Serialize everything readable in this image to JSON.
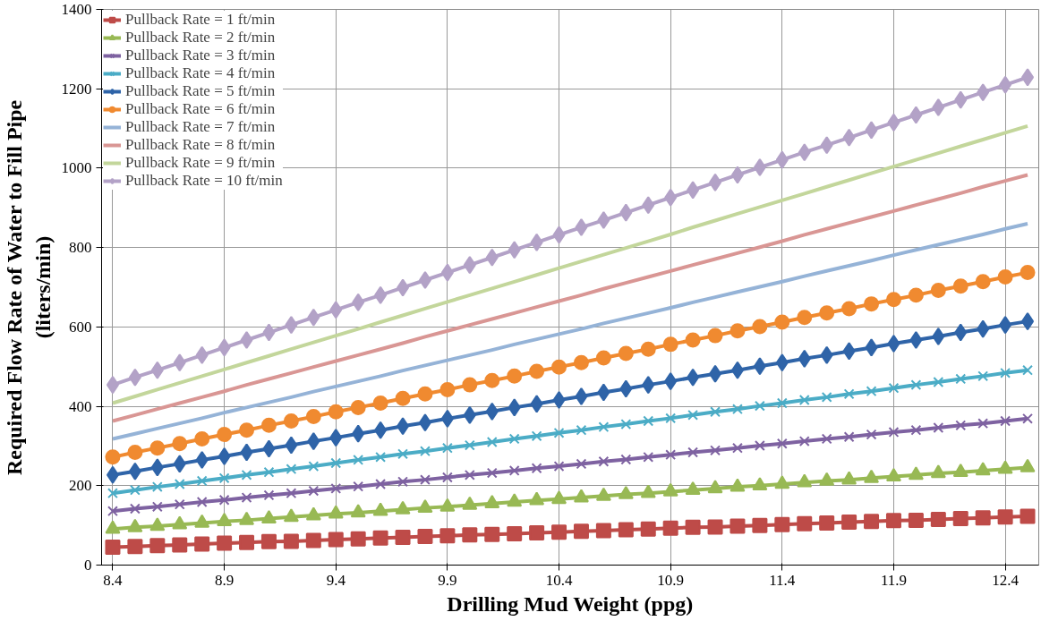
{
  "chart_data": {
    "type": "line",
    "xlabel": "Drilling Mud Weight (ppg)",
    "ylabel": "Required Flow Rate of Water to Fill Pipe\n(liters/min)",
    "x": [
      8.4,
      8.5,
      8.6,
      8.7,
      8.8,
      8.9,
      9.0,
      9.1,
      9.2,
      9.3,
      9.4,
      9.5,
      9.6,
      9.7,
      9.8,
      9.9,
      10.0,
      10.1,
      10.2,
      10.3,
      10.4,
      10.5,
      10.6,
      10.7,
      10.8,
      10.9,
      11.0,
      11.1,
      11.2,
      11.3,
      11.4,
      11.5,
      11.6,
      11.7,
      11.8,
      11.9,
      12.0,
      12.1,
      12.2,
      12.3,
      12.4,
      12.5
    ],
    "xlim": [
      8.35,
      12.55
    ],
    "xticks": [
      8.4,
      8.9,
      9.4,
      9.9,
      10.4,
      10.9,
      11.4,
      11.9,
      12.4
    ],
    "ylim": [
      0,
      1400
    ],
    "yticks": [
      0,
      200,
      400,
      600,
      800,
      1000,
      1200,
      1400
    ],
    "grid": true,
    "legend": "top left",
    "series": [
      {
        "name": "Pullback Rate = 1 ft/min",
        "color": "#be4b48",
        "marker": "square",
        "values": [
          45,
          47,
          49,
          51,
          53,
          55,
          57,
          59,
          60,
          62,
          64,
          66,
          68,
          70,
          72,
          74,
          76,
          77,
          79,
          81,
          83,
          85,
          87,
          89,
          91,
          93,
          95,
          96,
          98,
          100,
          102,
          104,
          106,
          108,
          110,
          112,
          113,
          115,
          117,
          119,
          121,
          123
        ]
      },
      {
        "name": "Pullback Rate = 2 ft/min",
        "color": "#98b954",
        "marker": "triangle",
        "values": [
          91,
          95,
          98,
          102,
          106,
          110,
          113,
          117,
          121,
          125,
          129,
          132,
          136,
          140,
          144,
          147,
          151,
          155,
          159,
          163,
          166,
          170,
          174,
          178,
          181,
          185,
          189,
          193,
          197,
          200,
          204,
          208,
          212,
          215,
          219,
          223,
          227,
          231,
          234,
          238,
          242,
          246
        ]
      },
      {
        "name": "Pullback Rate = 3 ft/min",
        "color": "#7e62a1",
        "marker": "cross",
        "values": [
          136,
          142,
          147,
          153,
          159,
          164,
          170,
          176,
          181,
          187,
          193,
          198,
          204,
          210,
          215,
          221,
          227,
          232,
          238,
          244,
          249,
          255,
          261,
          266,
          272,
          278,
          284,
          289,
          295,
          301,
          306,
          312,
          318,
          323,
          329,
          335,
          340,
          346,
          352,
          357,
          363,
          369
        ]
      },
      {
        "name": "Pullback Rate = 4 ft/min",
        "color": "#4bacc6",
        "marker": "cross",
        "values": [
          181,
          189,
          197,
          204,
          212,
          219,
          227,
          234,
          242,
          249,
          257,
          265,
          272,
          280,
          287,
          295,
          302,
          310,
          318,
          325,
          333,
          340,
          348,
          355,
          363,
          370,
          378,
          386,
          393,
          401,
          408,
          416,
          423,
          431,
          438,
          446,
          454,
          461,
          469,
          476,
          484,
          491
        ]
      },
      {
        "name": "Pullback Rate = 5 ft/min",
        "color": "#2f64a8",
        "marker": "diamond",
        "values": [
          227,
          236,
          246,
          255,
          265,
          274,
          284,
          293,
          302,
          312,
          321,
          331,
          340,
          350,
          359,
          369,
          378,
          387,
          397,
          406,
          416,
          425,
          435,
          444,
          454,
          463,
          473,
          482,
          491,
          501,
          510,
          520,
          529,
          539,
          548,
          558,
          567,
          576,
          586,
          595,
          605,
          614
        ]
      },
      {
        "name": "Pullback Rate = 6 ft/min",
        "color": "#f08a30",
        "marker": "circle",
        "values": [
          272,
          284,
          295,
          306,
          318,
          329,
          340,
          352,
          363,
          374,
          386,
          397,
          408,
          420,
          431,
          442,
          454,
          465,
          476,
          488,
          499,
          510,
          522,
          533,
          544,
          556,
          567,
          578,
          590,
          601,
          612,
          624,
          635,
          646,
          658,
          669,
          680,
          692,
          703,
          714,
          726,
          737
        ]
      },
      {
        "name": "Pullback Rate = 7 ft/min",
        "color": "#95b3d7",
        "marker": "none",
        "values": [
          318,
          331,
          344,
          357,
          370,
          384,
          397,
          410,
          423,
          437,
          450,
          463,
          476,
          490,
          503,
          516,
          529,
          542,
          556,
          569,
          582,
          595,
          609,
          622,
          635,
          648,
          662,
          675,
          688,
          701,
          714,
          728,
          741,
          754,
          767,
          781,
          794,
          807,
          820,
          833,
          847,
          860
        ]
      },
      {
        "name": "Pullback Rate = 8 ft/min",
        "color": "#d99694",
        "marker": "none",
        "values": [
          363,
          378,
          393,
          408,
          423,
          438,
          454,
          469,
          484,
          499,
          514,
          529,
          544,
          559,
          575,
          590,
          605,
          620,
          635,
          650,
          665,
          680,
          696,
          711,
          726,
          741,
          756,
          771,
          786,
          801,
          816,
          832,
          847,
          862,
          877,
          892,
          907,
          922,
          937,
          953,
          968,
          983
        ]
      },
      {
        "name": "Pullback Rate = 9 ft/min",
        "color": "#c3d69b",
        "marker": "none",
        "values": [
          408,
          425,
          442,
          459,
          476,
          493,
          510,
          527,
          544,
          561,
          578,
          595,
          612,
          629,
          646,
          663,
          680,
          697,
          714,
          731,
          748,
          765,
          782,
          799,
          816,
          833,
          851,
          868,
          885,
          902,
          919,
          936,
          953,
          970,
          987,
          1004,
          1021,
          1038,
          1055,
          1072,
          1089,
          1106
        ]
      },
      {
        "name": "Pullback Rate = 10 ft/min",
        "color": "#b3a2c7",
        "marker": "diamond",
        "values": [
          454,
          473,
          491,
          510,
          529,
          548,
          567,
          586,
          605,
          624,
          643,
          662,
          680,
          699,
          718,
          737,
          756,
          775,
          794,
          813,
          832,
          851,
          869,
          888,
          907,
          926,
          945,
          964,
          983,
          1002,
          1021,
          1040,
          1058,
          1077,
          1096,
          1115,
          1134,
          1153,
          1172,
          1191,
          1210,
          1229
        ]
      }
    ]
  }
}
